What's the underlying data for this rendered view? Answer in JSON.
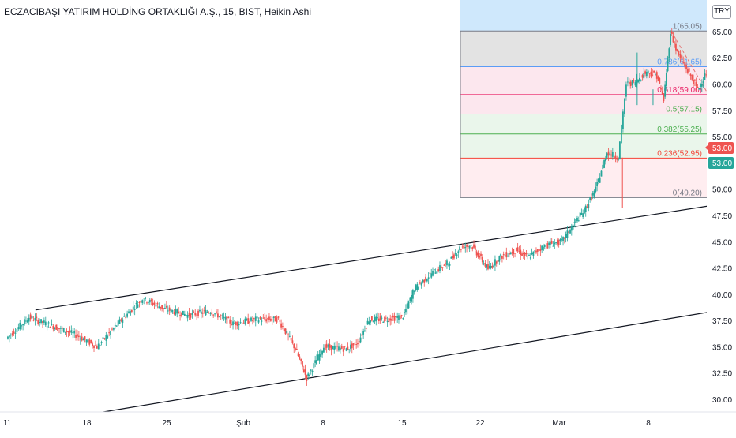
{
  "header": {
    "title": "ECZACIBAŞI YATIRIM HOLDİNG ORTAKLIĞI A.Ş., 15, BIST, Heikin Ashi",
    "currency": "TRY"
  },
  "price_axis": {
    "ticks": [
      "65.00",
      "62.50",
      "60.00",
      "57.50",
      "55.00",
      "52.50",
      "50.00",
      "47.50",
      "45.00",
      "42.50",
      "40.00",
      "37.50",
      "35.00",
      "32.50",
      "30.00"
    ],
    "badges": [
      {
        "label": "53.00",
        "color": "#ef5350"
      },
      {
        "label": "53.00",
        "color": "#26a69a"
      }
    ]
  },
  "time_axis": {
    "ticks": [
      "11",
      "18",
      "25",
      "Şub",
      "8",
      "15",
      "22",
      "Mar",
      "8"
    ]
  },
  "fib_levels": [
    {
      "label": "1(65.05)",
      "price": 65.05,
      "color": "#787b86"
    },
    {
      "label": "0.786(61.65)",
      "price": 61.65,
      "color": "#5b9cf6"
    },
    {
      "label": "0.618(59.00)",
      "price": 59.0,
      "color": "#e91e63"
    },
    {
      "label": "0.5(57.15)",
      "price": 57.15,
      "color": "#4caf50"
    },
    {
      "label": "0.382(55.25)",
      "price": 55.25,
      "color": "#4caf50"
    },
    {
      "label": "0.236(52.95)",
      "price": 52.95,
      "color": "#f44336"
    },
    {
      "label": "0(49.20)",
      "price": 49.2,
      "color": "#787b86"
    }
  ],
  "fib_zone_colors": [
    "#e0e0e0",
    "#fce4ec",
    "#fce4ec",
    "#e8f5e9",
    "#e8f5e9",
    "#ffebee"
  ],
  "colors": {
    "up": "#26a69a",
    "down": "#ef5350",
    "trendline": "#131722",
    "highlight": "#bbdefb",
    "axis_text": "#131722",
    "grid": "#f0f3fa"
  },
  "chart_data": {
    "type": "candlestick",
    "title": "ECZACIBAŞI YATIRIM HOLDİNG ORTAKLIĞI A.Ş., 15, BIST, Heikin Ashi",
    "ylim": [
      28.8,
      68.0
    ],
    "y_ticks": [
      30,
      32.5,
      35,
      37.5,
      40,
      42.5,
      45,
      47.5,
      50,
      52.5,
      55,
      57.5,
      60,
      62.5,
      65
    ],
    "x_ticks": [
      "11",
      "18",
      "25",
      "Şub",
      "8",
      "15",
      "22",
      "Mar",
      "8"
    ],
    "path": [
      [
        0,
        35.8
      ],
      [
        2,
        37.8
      ],
      [
        4,
        37.0
      ],
      [
        6,
        36.2
      ],
      [
        8,
        35.0
      ],
      [
        10,
        37.4
      ],
      [
        12,
        39.6
      ],
      [
        14,
        38.6
      ],
      [
        16,
        38.0
      ],
      [
        18,
        38.4
      ],
      [
        20,
        37.2
      ],
      [
        22,
        37.6
      ],
      [
        24,
        37.6
      ],
      [
        25.5,
        34.8
      ],
      [
        26.5,
        32.0
      ],
      [
        28,
        35.0
      ],
      [
        30,
        34.8
      ],
      [
        31,
        35.4
      ],
      [
        32,
        37.6
      ],
      [
        33.5,
        37.6
      ],
      [
        35,
        37.9
      ],
      [
        36,
        40.5
      ],
      [
        37.5,
        42.0
      ],
      [
        39,
        43.0
      ],
      [
        40,
        44.4
      ],
      [
        41,
        44.7
      ],
      [
        42.5,
        42.4
      ],
      [
        43.5,
        43.5
      ],
      [
        45,
        44.2
      ],
      [
        46,
        43.5
      ],
      [
        47,
        44.3
      ],
      [
        48,
        44.8
      ],
      [
        49,
        45.0
      ],
      [
        50,
        46.6
      ],
      [
        51,
        48.0
      ],
      [
        52,
        50.0
      ],
      [
        53,
        53.5
      ],
      [
        54,
        53.0
      ],
      [
        54.7,
        60.0
      ],
      [
        55.5,
        60.2
      ],
      [
        56.5,
        61.2
      ],
      [
        57.4,
        60.8
      ],
      [
        58,
        58.5
      ],
      [
        58.6,
        65.0
      ],
      [
        59.2,
        63.0
      ],
      [
        60,
        61.5
      ],
      [
        61,
        59.5
      ],
      [
        62,
        61.6
      ],
      [
        63,
        58.0
      ],
      [
        64,
        56.5
      ],
      [
        64.8,
        57.0
      ],
      [
        65.5,
        55.2
      ],
      [
        66.5,
        53.0
      ],
      [
        67.2,
        49.3
      ],
      [
        68,
        52.5
      ],
      [
        68.5,
        53.0
      ]
    ],
    "spikes": [
      [
        54.3,
        48.2
      ],
      [
        55.6,
        63.0
      ],
      [
        57,
        59.5
      ]
    ],
    "fib_retracement": {
      "high": 65.05,
      "low": 49.2
    },
    "trendlines": [
      {
        "name": "channel-upper",
        "from": [
          2.5,
          38.5
        ],
        "to": [
          89.5,
          53.0
        ]
      },
      {
        "name": "channel-lower",
        "from": [
          8.5,
          28.8
        ],
        "to": [
          89.5,
          43.2
        ]
      }
    ]
  }
}
